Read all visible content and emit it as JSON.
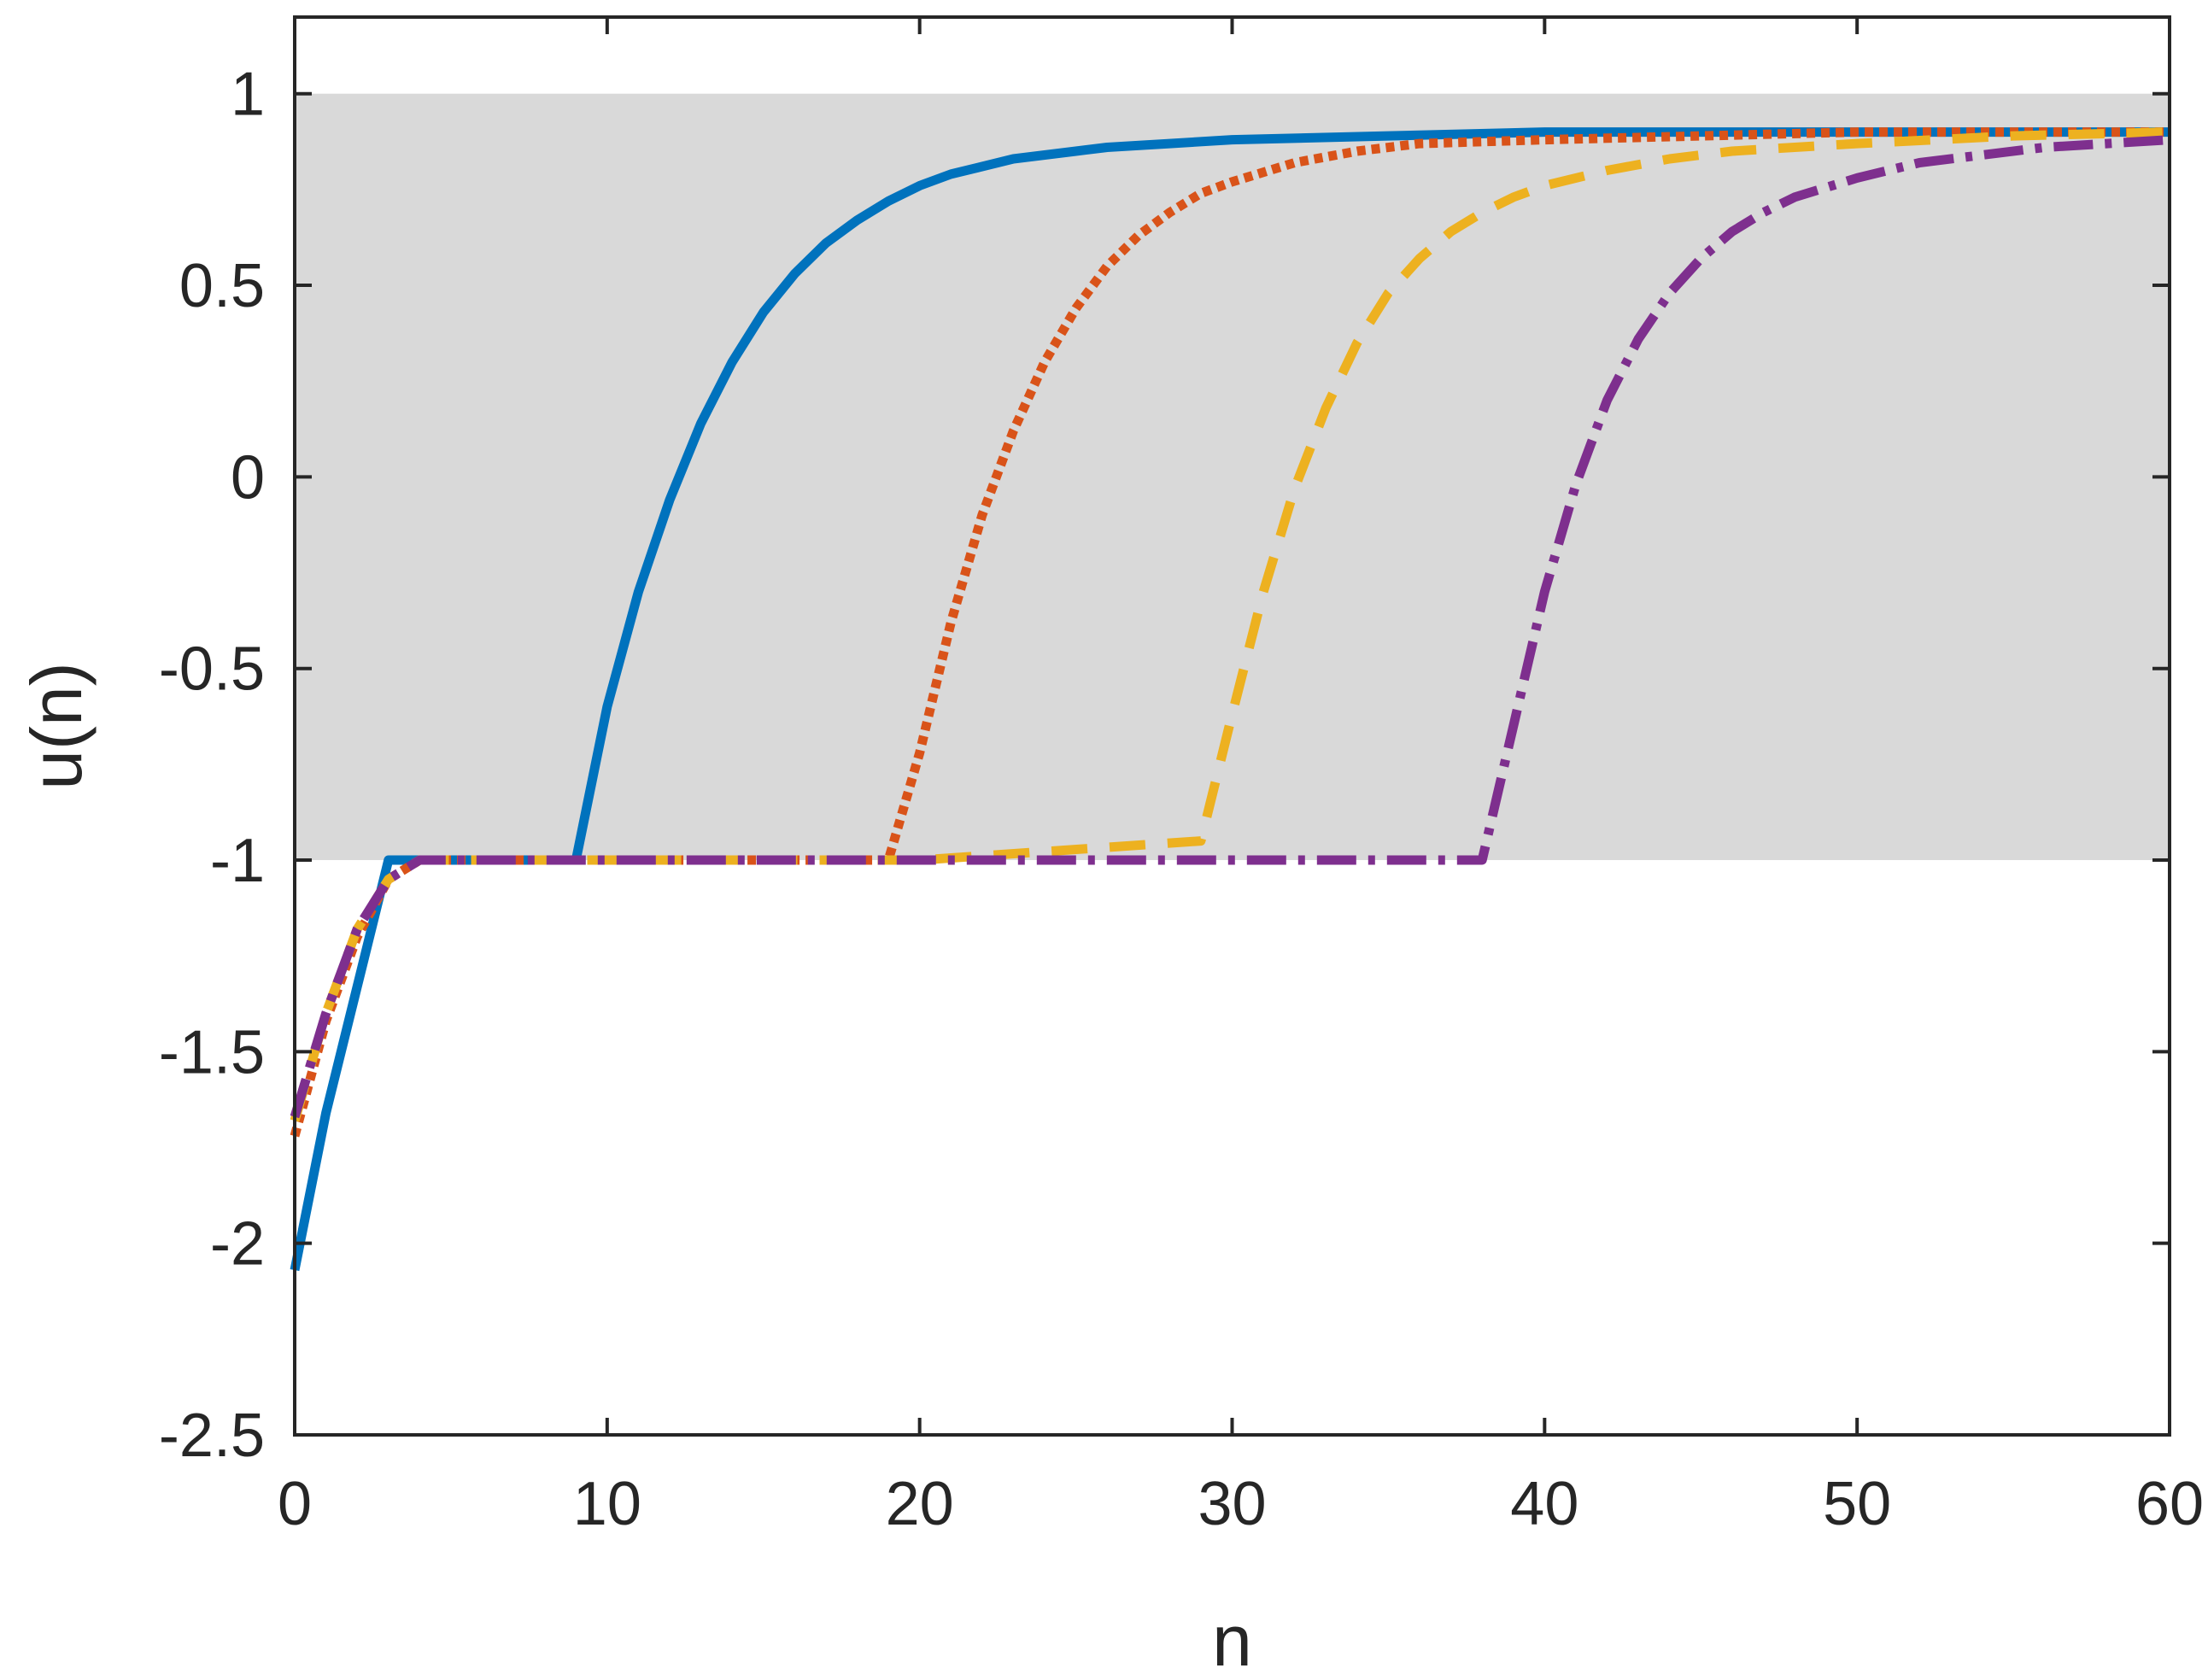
{
  "chart_data": {
    "type": "line",
    "title": "",
    "xlabel": "n",
    "ylabel": "u(n)",
    "xlim": [
      0,
      60
    ],
    "ylim": [
      -2.5,
      1.2
    ],
    "xticks": [
      0,
      10,
      20,
      30,
      40,
      50,
      60
    ],
    "xtick_labels": [
      "0",
      "10",
      "20",
      "30",
      "40",
      "50",
      "60"
    ],
    "yticks": [
      -2.5,
      -2,
      -1.5,
      -1,
      -0.5,
      0,
      0.5,
      1
    ],
    "ytick_labels": [
      "-2.5",
      "-2",
      "-1.5",
      "-1",
      "-0.5",
      "0",
      "0.5",
      "1"
    ],
    "grid": false,
    "legend": "none",
    "shaded_band": {
      "y_from": -1,
      "y_to": 1,
      "color": "#d9d9d9"
    },
    "series": [
      {
        "color": "#0072bd",
        "style": "solid",
        "x": [
          0,
          1,
          2,
          3,
          4,
          5,
          6,
          7,
          8,
          9,
          10,
          11,
          12,
          13,
          14,
          15,
          16,
          17,
          18,
          19,
          20,
          21,
          22,
          23,
          24,
          25,
          26,
          28,
          30,
          35,
          40,
          45,
          50,
          55,
          60
        ],
        "y": [
          -2.07,
          -1.66,
          -1.33,
          -1.0,
          -1.0,
          -1.0,
          -1.0,
          -1.0,
          -1.0,
          -1.0,
          -0.6,
          -0.3,
          -0.06,
          0.14,
          0.3,
          0.43,
          0.53,
          0.61,
          0.67,
          0.72,
          0.76,
          0.79,
          0.81,
          0.83,
          0.84,
          0.85,
          0.86,
          0.87,
          0.88,
          0.89,
          0.9,
          0.9,
          0.9,
          0.9,
          0.9
        ]
      },
      {
        "color": "#d95319",
        "style": "dotted",
        "x": [
          0,
          1,
          2,
          3,
          4,
          5,
          10,
          15,
          19,
          20,
          21,
          22,
          23,
          24,
          25,
          26,
          27,
          28,
          29,
          30,
          32,
          34,
          36,
          40,
          45,
          50,
          55,
          60
        ],
        "y": [
          -1.72,
          -1.42,
          -1.2,
          -1.05,
          -1.0,
          -1.0,
          -1.0,
          -1.0,
          -1.0,
          -0.72,
          -0.38,
          -0.1,
          0.12,
          0.3,
          0.44,
          0.55,
          0.63,
          0.69,
          0.74,
          0.77,
          0.82,
          0.85,
          0.87,
          0.88,
          0.89,
          0.9,
          0.9,
          0.9
        ]
      },
      {
        "color": "#edb120",
        "style": "dashed",
        "x": [
          0,
          1,
          2,
          3,
          4,
          5,
          10,
          20,
          29,
          30,
          31,
          32,
          33,
          34,
          35,
          36,
          37,
          38,
          39,
          40,
          42,
          44,
          46,
          48,
          50,
          55,
          60
        ],
        "y": [
          -1.68,
          -1.4,
          -1.18,
          -1.05,
          -1.0,
          -1.0,
          -1.0,
          -1.0,
          -0.95,
          -0.62,
          -0.3,
          -0.03,
          0.18,
          0.35,
          0.48,
          0.57,
          0.64,
          0.69,
          0.73,
          0.76,
          0.8,
          0.83,
          0.85,
          0.86,
          0.87,
          0.89,
          0.9
        ]
      },
      {
        "color": "#7e2f8e",
        "style": "dashdot",
        "x": [
          0,
          1,
          2,
          3,
          4,
          5,
          10,
          20,
          30,
          38,
          39,
          40,
          41,
          42,
          43,
          44,
          45,
          46,
          47,
          48,
          50,
          52,
          54,
          56,
          58,
          60
        ],
        "y": [
          -1.67,
          -1.4,
          -1.18,
          -1.05,
          -1.0,
          -1.0,
          -1.0,
          -1.0,
          -1.0,
          -1.0,
          -0.65,
          -0.3,
          -0.02,
          0.2,
          0.36,
          0.48,
          0.57,
          0.64,
          0.69,
          0.73,
          0.78,
          0.82,
          0.84,
          0.86,
          0.87,
          0.88
        ]
      }
    ]
  }
}
